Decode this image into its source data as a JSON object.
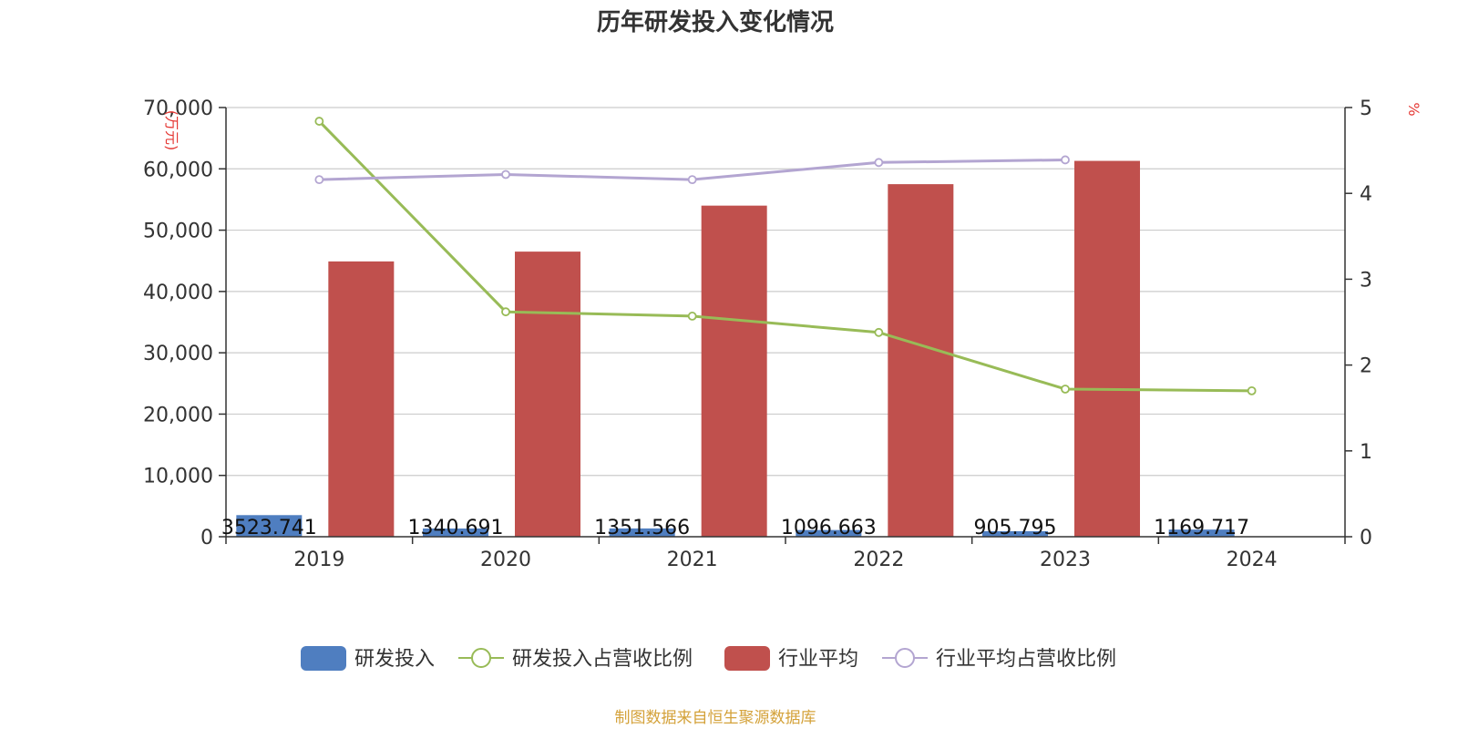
{
  "chart_data": {
    "type": "bar",
    "title": "历年研发投入变化情况",
    "categories": [
      "2019",
      "2020",
      "2021",
      "2022",
      "2023",
      "2024"
    ],
    "left_axis": {
      "unit_label": "(万元)",
      "ylim": [
        0,
        70000
      ],
      "ticks": [
        0,
        10000,
        20000,
        30000,
        40000,
        50000,
        60000,
        70000
      ],
      "tick_labels": [
        "0",
        "10,000",
        "20,000",
        "30,000",
        "40,000",
        "50,000",
        "60,000",
        "70,000"
      ]
    },
    "right_axis": {
      "unit_label": "%",
      "ylim": [
        0,
        5
      ],
      "ticks": [
        0,
        1,
        2,
        3,
        4,
        5
      ],
      "tick_labels": [
        "0",
        "1",
        "2",
        "3",
        "4",
        "5"
      ]
    },
    "series": [
      {
        "name": "研发投入",
        "kind": "bar",
        "axis": "left",
        "color": "#4f7ec0",
        "values": [
          3523.741,
          1340.691,
          1351.566,
          1096.663,
          905.795,
          1169.717
        ],
        "labels": [
          "3523.741",
          "1340.691",
          "1351.566",
          "1096.663",
          "905.795",
          "1169.717"
        ]
      },
      {
        "name": "研发投入占营收比例",
        "kind": "line",
        "axis": "right",
        "color": "#98bb57",
        "values": [
          4.84,
          2.62,
          2.57,
          2.38,
          1.72,
          1.7
        ]
      },
      {
        "name": "行业平均",
        "kind": "bar",
        "axis": "left",
        "color": "#c0504d",
        "values": [
          44900,
          46500,
          54000,
          57500,
          61300,
          null
        ]
      },
      {
        "name": "行业平均占营收比例",
        "kind": "line",
        "axis": "right",
        "color": "#b3a5d1",
        "values": [
          4.16,
          4.22,
          4.16,
          4.36,
          4.39,
          null
        ]
      }
    ],
    "legend_position": "bottom-center",
    "grid": true
  },
  "colors": {
    "unit_label": "#e53935",
    "source": "#d4a23a",
    "grid": "#cccccc",
    "axis": "#333333"
  },
  "source_text": "制图数据来自恒生聚源数据库"
}
